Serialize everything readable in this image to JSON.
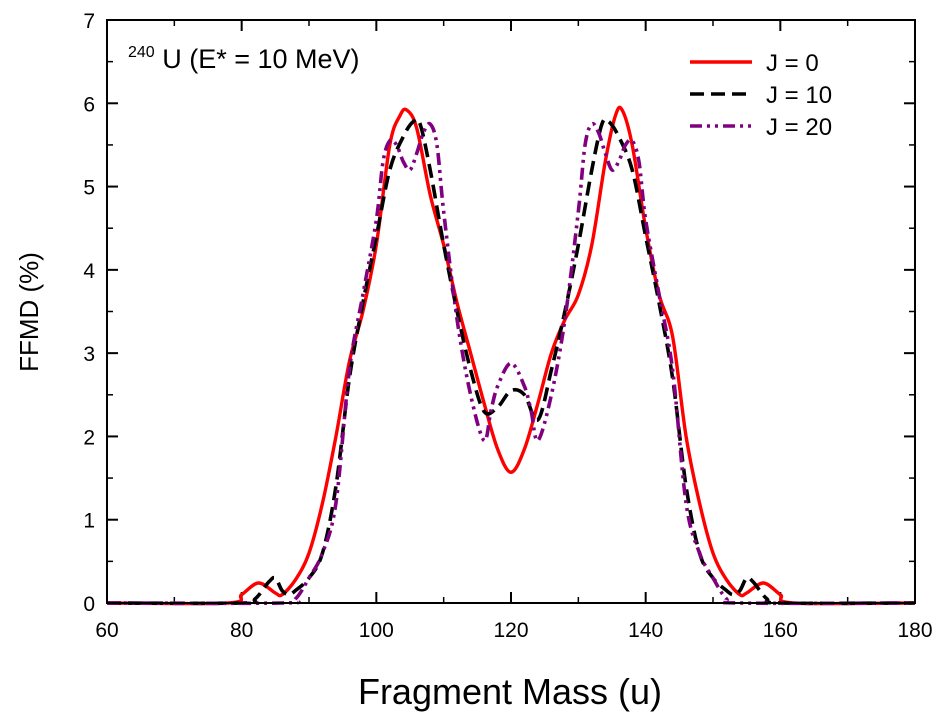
{
  "chart_data": {
    "type": "line",
    "title": "",
    "annotation": {
      "mass_number": "240",
      "text": "U (E* = 10 MeV)"
    },
    "xlabel": "Fragment Mass (u)",
    "ylabel": "FFMD (%)",
    "xlim": [
      60,
      180
    ],
    "ylim": [
      0,
      7
    ],
    "xticks": [
      60,
      80,
      100,
      120,
      140,
      160,
      180
    ],
    "yticks": [
      0,
      1,
      2,
      3,
      4,
      5,
      6,
      7
    ],
    "grid": false,
    "legend_position": "top-right",
    "series": [
      {
        "name": "J = 0",
        "color": "#ff0000",
        "dash": "solid",
        "x": [
          60,
          78,
          80,
          82.5,
          85,
          86,
          88,
          90,
          92,
          94,
          96,
          98,
          100,
          102,
          103.5,
          104.5,
          106,
          108,
          110,
          112,
          114,
          116,
          118,
          120,
          122,
          124,
          126,
          128,
          130,
          132,
          134,
          135.5,
          136.5,
          138,
          140,
          142,
          144,
          146,
          148,
          150,
          152,
          154,
          155,
          157.5,
          160,
          162,
          180
        ],
        "y": [
          0,
          0,
          0.1,
          0.24,
          0.12,
          0.1,
          0.28,
          0.6,
          1.2,
          2.0,
          2.9,
          3.5,
          4.3,
          5.5,
          5.85,
          5.92,
          5.7,
          4.9,
          4.3,
          3.6,
          3.0,
          2.4,
          1.85,
          1.57,
          1.85,
          2.4,
          3.0,
          3.4,
          3.7,
          4.3,
          5.3,
          5.85,
          5.92,
          5.5,
          4.5,
          3.7,
          3.2,
          2.0,
          1.2,
          0.6,
          0.28,
          0.1,
          0.12,
          0.24,
          0.1,
          0,
          0
        ]
      },
      {
        "name": "J = 10",
        "color": "#000000",
        "dash": "dashed",
        "x": [
          60,
          80,
          82,
          84,
          85,
          86,
          87,
          88,
          90,
          92,
          94,
          96,
          98,
          100,
          102,
          104,
          105.5,
          106.5,
          108,
          110,
          112,
          114,
          116,
          118,
          120,
          122,
          124,
          126,
          128,
          130,
          132,
          133.5,
          134.5,
          136,
          138,
          140,
          142,
          144,
          146,
          148,
          150,
          152,
          153,
          154,
          155,
          156,
          158,
          160,
          180
        ],
        "y": [
          0,
          0,
          0.05,
          0.25,
          0.3,
          0.15,
          0.1,
          0.15,
          0.3,
          0.6,
          1.4,
          2.7,
          3.6,
          4.4,
          5.2,
          5.6,
          5.78,
          5.75,
          5.2,
          4.3,
          3.5,
          2.8,
          2.3,
          2.35,
          2.55,
          2.5,
          2.2,
          2.8,
          3.5,
          4.3,
          5.2,
          5.75,
          5.78,
          5.6,
          5.2,
          4.4,
          3.6,
          2.7,
          1.4,
          0.6,
          0.3,
          0.15,
          0.1,
          0.15,
          0.3,
          0.25,
          0.05,
          0,
          0
        ]
      },
      {
        "name": "J = 20",
        "color": "#800080",
        "dash": "dash-dot",
        "x": [
          60,
          86,
          88,
          90,
          92,
          94,
          96,
          98,
          100,
          101,
          102,
          103,
          104,
          105,
          106,
          107,
          108,
          109,
          110,
          112,
          114,
          116,
          117,
          118,
          120,
          122,
          123,
          124,
          126,
          128,
          130,
          131,
          132,
          133,
          134,
          135,
          136,
          137,
          138,
          139,
          140,
          142,
          144,
          146,
          148,
          150,
          152,
          154,
          180
        ],
        "y": [
          0,
          0,
          0.05,
          0.3,
          0.6,
          1.2,
          2.8,
          3.7,
          4.6,
          5.3,
          5.55,
          5.5,
          5.3,
          5.2,
          5.4,
          5.65,
          5.75,
          5.5,
          4.7,
          3.4,
          2.5,
          1.95,
          2.3,
          2.6,
          2.88,
          2.6,
          2.3,
          1.95,
          2.5,
          3.4,
          4.7,
          5.5,
          5.75,
          5.65,
          5.4,
          5.2,
          5.3,
          5.5,
          5.55,
          5.3,
          4.6,
          3.7,
          2.8,
          1.2,
          0.6,
          0.3,
          0.05,
          0,
          0
        ]
      }
    ]
  }
}
